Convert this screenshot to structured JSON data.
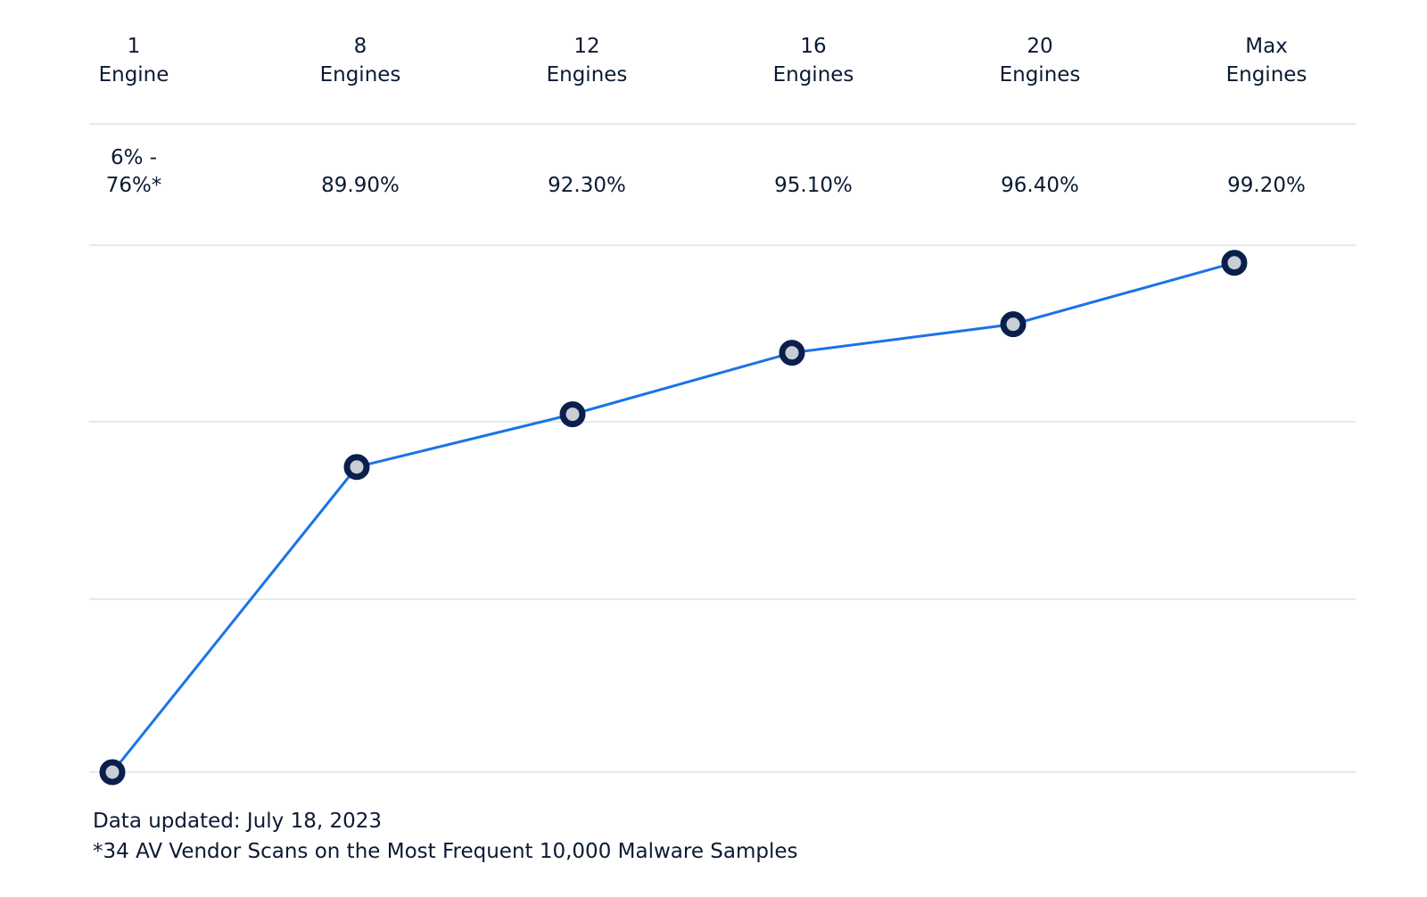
{
  "chart_data": {
    "type": "line",
    "categories": [
      "1 Engine",
      "8 Engines",
      "12 Engines",
      "16 Engines",
      "20 Engines",
      "Max Engines"
    ],
    "header_labels": [
      [
        "1",
        "Engine"
      ],
      [
        "8",
        "Engines"
      ],
      [
        "12",
        "Engines"
      ],
      [
        "16",
        "Engines"
      ],
      [
        "20",
        "Engines"
      ],
      [
        "Max",
        "Engines"
      ]
    ],
    "value_labels": [
      [
        "6% -",
        "76%*"
      ],
      [
        "89.90%"
      ],
      [
        "92.30%"
      ],
      [
        "95.10%"
      ],
      [
        "96.40%"
      ],
      [
        "99.20%"
      ]
    ],
    "values": [
      76,
      89.9,
      92.3,
      95.1,
      96.4,
      99.2
    ],
    "ylim": [
      76,
      100
    ],
    "grid": true,
    "colors": {
      "line": "#1a73e8",
      "marker_stroke": "#0b1f4d",
      "marker_fill": "#c9ced6",
      "grid": "#e6e8ec",
      "text": "#0b1a33"
    }
  },
  "footnotes": {
    "updated": "Data updated: July 18, 2023",
    "note": "*34 AV Vendor Scans on the Most Frequent 10,000 Malware Samples"
  }
}
